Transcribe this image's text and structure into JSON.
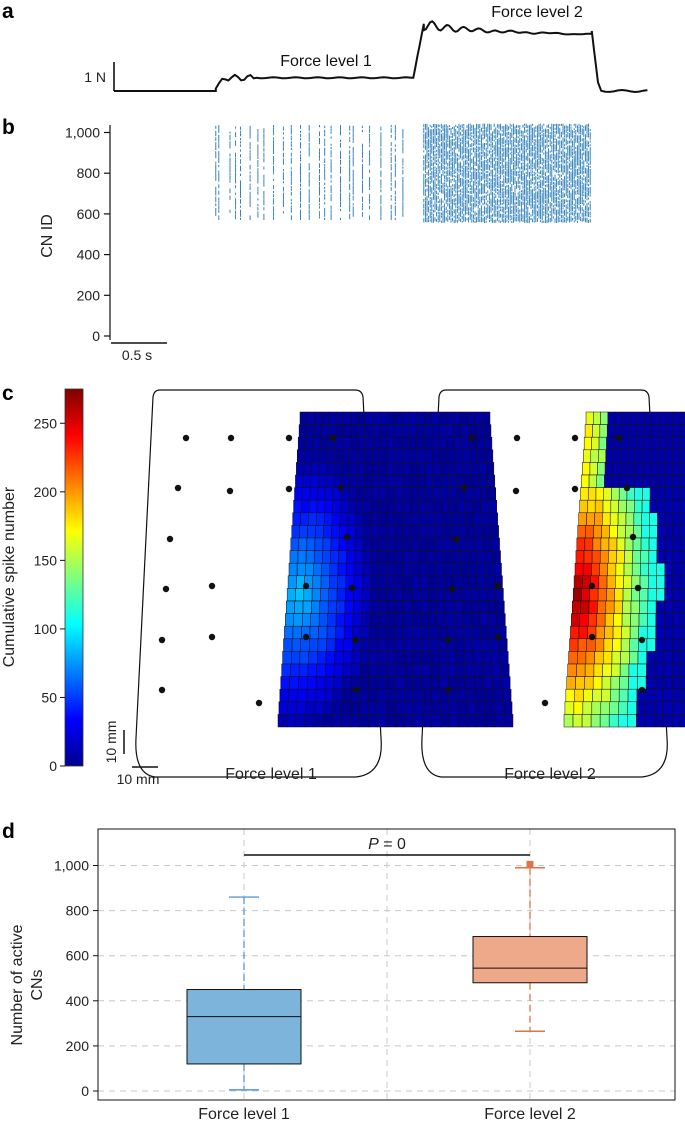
{
  "panels": {
    "a": "a",
    "b": "b",
    "c": "c",
    "d": "d"
  },
  "chart_data": [
    {
      "panel": "a",
      "type": "line",
      "title": "",
      "annotations": [
        "Force level 1",
        "Force level 2"
      ],
      "scale_bar": "1 N",
      "colors": {
        "line": "#111111"
      },
      "segments": [
        {
          "name": "baseline",
          "t": [
            0,
            0.95
          ],
          "force": 0.0
        },
        {
          "name": "Force level 1",
          "t": [
            0.95,
            2.85
          ],
          "force": 0.55
        },
        {
          "name": "Force level 2",
          "t": [
            2.95,
            4.55
          ],
          "force": 2.5
        },
        {
          "name": "baseline",
          "t": [
            4.6,
            5.1
          ],
          "force": 0.0
        }
      ]
    },
    {
      "panel": "b",
      "type": "scatter",
      "subtype": "raster",
      "ylabel": "CN ID",
      "yticks": [
        "0",
        "200",
        "400",
        "600",
        "800",
        "1,000"
      ],
      "ytick_values": [
        0,
        200,
        400,
        600,
        800,
        1000
      ],
      "ylim": [
        0,
        1050
      ],
      "time_scale_bar": "0.5 s",
      "colors": {
        "spikes": "#1f77b4"
      },
      "level1": {
        "t_range": [
          0.95,
          2.85
        ],
        "cn_range": [
          570,
          1030
        ]
      },
      "level2": {
        "t_range": [
          2.95,
          4.55
        ],
        "cn_range": [
          555,
          1035
        ]
      }
    },
    {
      "panel": "c",
      "type": "heatmap",
      "colorbar_label": "Cumulative spike number",
      "colorbar_ticks": [
        "0",
        "50",
        "100",
        "150",
        "200",
        "250"
      ],
      "colorbar_tick_values": [
        0,
        50,
        100,
        150,
        200,
        250
      ],
      "clim": [
        0,
        275
      ],
      "colormap": "jet",
      "scale_bars": [
        "10 mm",
        "10 mm"
      ],
      "maps": [
        {
          "label": "Force level 1",
          "rows": 25,
          "cols": 26,
          "peak": 80
        },
        {
          "label": "Force level 2",
          "rows": 25,
          "cols": 26,
          "peak": 270
        }
      ]
    },
    {
      "panel": "d",
      "type": "box",
      "ylabel": "Number of active CNs",
      "ylabel_lines": [
        "Number of active",
        "CNs"
      ],
      "yticks": [
        "0",
        "200",
        "400",
        "600",
        "800",
        "1,000"
      ],
      "ytick_values": [
        0,
        200,
        400,
        600,
        800,
        1000
      ],
      "ylim": [
        -30,
        1130
      ],
      "grid": true,
      "categories": [
        "Force level 1",
        "Force level 2"
      ],
      "significance": {
        "p": "P",
        "eq": " = 0"
      },
      "boxes": [
        {
          "category": "Force level 1",
          "min": 5,
          "q1": 120,
          "median": 330,
          "q3": 450,
          "max": 860,
          "outliers": [],
          "color": "#7db4dc",
          "whisker_color": "#5a9acf"
        },
        {
          "category": "Force level 2",
          "min": 265,
          "q1": 480,
          "median": 545,
          "q3": 685,
          "max": 990,
          "outliers": [
            1005
          ],
          "color": "#eea98a",
          "whisker_color": "#e0734a"
        }
      ]
    }
  ]
}
